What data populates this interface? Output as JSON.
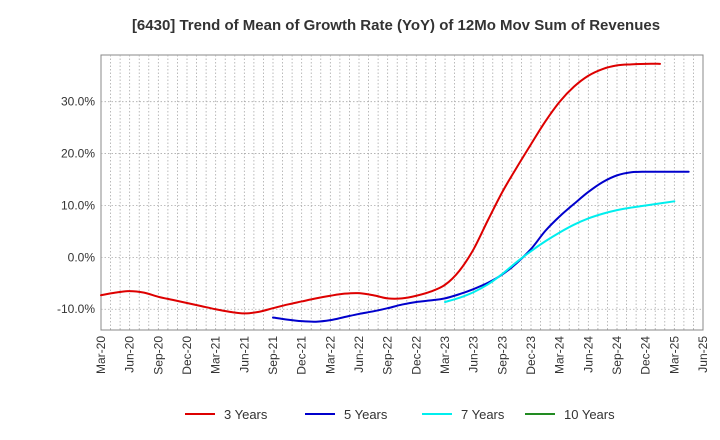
{
  "chart_data": {
    "type": "line",
    "title": "[6430]  Trend of Mean of Growth Rate (YoY) of 12Mo Mov Sum of Revenues",
    "xlabel": "",
    "ylabel": "",
    "ylim": [
      -14,
      39
    ],
    "y_ticks": [
      {
        "value": 30,
        "label": "30.0%"
      },
      {
        "value": 20,
        "label": "20.0%"
      },
      {
        "value": 10,
        "label": "10.0%"
      },
      {
        "value": 0,
        "label": "0.0%"
      },
      {
        "value": -10,
        "label": "-10.0%"
      }
    ],
    "x_ticks": [
      "Mar-20",
      "Jun-20",
      "Sep-20",
      "Dec-20",
      "Mar-21",
      "Jun-21",
      "Sep-21",
      "Dec-21",
      "Mar-22",
      "Jun-22",
      "Sep-22",
      "Dec-22",
      "Mar-23",
      "Jun-23",
      "Sep-23",
      "Dec-23",
      "Mar-24",
      "Jun-24",
      "Sep-24",
      "Dec-24",
      "Mar-25",
      "Jun-25"
    ],
    "grid": true,
    "legend_position": "bottom",
    "series": [
      {
        "name": "3 Years",
        "color": "#dd0000",
        "points": [
          [
            0,
            -7.3
          ],
          [
            1,
            -6.8
          ],
          [
            2,
            -6.5
          ],
          [
            3,
            -6.8
          ],
          [
            4,
            -7.6
          ],
          [
            5,
            -8.2
          ],
          [
            6,
            -8.8
          ],
          [
            7,
            -9.4
          ],
          [
            8,
            -10.0
          ],
          [
            9,
            -10.5
          ],
          [
            10,
            -10.8
          ],
          [
            11,
            -10.5
          ],
          [
            12,
            -9.8
          ],
          [
            13,
            -9.1
          ],
          [
            14,
            -8.5
          ],
          [
            15,
            -7.9
          ],
          [
            16,
            -7.4
          ],
          [
            17,
            -7.0
          ],
          [
            18,
            -6.9
          ],
          [
            19,
            -7.3
          ],
          [
            20,
            -7.9
          ],
          [
            21,
            -7.9
          ],
          [
            22,
            -7.4
          ],
          [
            23,
            -6.6
          ],
          [
            24,
            -5.3
          ],
          [
            25,
            -2.6
          ],
          [
            26,
            1.6
          ],
          [
            27,
            7.2
          ],
          [
            28,
            12.6
          ],
          [
            29,
            17.3
          ],
          [
            30,
            21.8
          ],
          [
            31,
            26.2
          ],
          [
            32,
            30.0
          ],
          [
            33,
            32.9
          ],
          [
            34,
            35.0
          ],
          [
            35,
            36.3
          ],
          [
            36,
            37.0
          ],
          [
            37,
            37.2
          ],
          [
            38,
            37.3
          ],
          [
            39,
            37.3
          ]
        ]
      },
      {
        "name": "5 Years",
        "color": "#0000cc",
        "points": [
          [
            12,
            -11.6
          ],
          [
            13,
            -12.0
          ],
          [
            14,
            -12.3
          ],
          [
            15,
            -12.4
          ],
          [
            16,
            -12.1
          ],
          [
            17,
            -11.5
          ],
          [
            18,
            -10.9
          ],
          [
            19,
            -10.4
          ],
          [
            20,
            -9.8
          ],
          [
            21,
            -9.1
          ],
          [
            22,
            -8.6
          ],
          [
            23,
            -8.3
          ],
          [
            24,
            -7.9
          ],
          [
            25,
            -7.1
          ],
          [
            26,
            -6.1
          ],
          [
            27,
            -4.9
          ],
          [
            28,
            -3.3
          ],
          [
            29,
            -1.1
          ],
          [
            30,
            1.6
          ],
          [
            31,
            5.1
          ],
          [
            32,
            7.9
          ],
          [
            33,
            10.3
          ],
          [
            34,
            12.6
          ],
          [
            35,
            14.5
          ],
          [
            36,
            15.8
          ],
          [
            37,
            16.4
          ],
          [
            38,
            16.5
          ],
          [
            39,
            16.5
          ],
          [
            40,
            16.5
          ],
          [
            41,
            16.5
          ]
        ]
      },
      {
        "name": "7 Years",
        "color": "#00eeee",
        "points": [
          [
            24,
            -8.6
          ],
          [
            25,
            -7.8
          ],
          [
            26,
            -6.7
          ],
          [
            27,
            -5.2
          ],
          [
            28,
            -3.2
          ],
          [
            29,
            -0.9
          ],
          [
            30,
            1.2
          ],
          [
            31,
            3.1
          ],
          [
            32,
            4.8
          ],
          [
            33,
            6.3
          ],
          [
            34,
            7.5
          ],
          [
            35,
            8.4
          ],
          [
            36,
            9.1
          ],
          [
            37,
            9.6
          ],
          [
            38,
            10.0
          ],
          [
            39,
            10.4
          ],
          [
            40,
            10.8
          ]
        ]
      },
      {
        "name": "10 Years",
        "color": "#228b22",
        "points": []
      }
    ]
  }
}
